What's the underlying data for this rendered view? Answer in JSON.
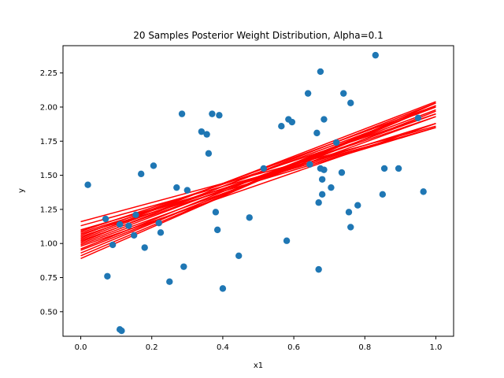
{
  "chart_data": {
    "type": "scatter",
    "title": "20 Samples Posterior Weight Distribution, Alpha=0.1",
    "xlabel": "x1",
    "ylabel": "y",
    "xlim": [
      -0.05,
      1.05
    ],
    "ylim": [
      0.32,
      2.45
    ],
    "xticks": [
      0.0,
      0.2,
      0.4,
      0.6,
      0.8,
      1.0
    ],
    "xtick_labels": [
      "0.0",
      "0.2",
      "0.4",
      "0.6",
      "0.8",
      "1.0"
    ],
    "yticks": [
      0.5,
      0.75,
      1.0,
      1.25,
      1.5,
      1.75,
      2.0,
      2.25
    ],
    "ytick_labels": [
      "0.50",
      "0.75",
      "1.00",
      "1.25",
      "1.50",
      "1.75",
      "2.00",
      "2.25"
    ],
    "grid": false,
    "colors": {
      "points": "#1f77b4",
      "lines": "#ff0000"
    },
    "scatter": {
      "x": [
        0.02,
        0.07,
        0.075,
        0.09,
        0.11,
        0.11,
        0.115,
        0.135,
        0.15,
        0.155,
        0.17,
        0.18,
        0.205,
        0.22,
        0.225,
        0.25,
        0.27,
        0.285,
        0.29,
        0.3,
        0.34,
        0.355,
        0.36,
        0.37,
        0.38,
        0.385,
        0.39,
        0.4,
        0.445,
        0.475,
        0.515,
        0.565,
        0.58,
        0.585,
        0.595,
        0.64,
        0.645,
        0.665,
        0.67,
        0.67,
        0.675,
        0.675,
        0.68,
        0.68,
        0.685,
        0.685,
        0.705,
        0.72,
        0.735,
        0.74,
        0.755,
        0.76,
        0.76,
        0.78,
        0.83,
        0.85,
        0.855,
        0.895,
        0.95,
        0.965
      ],
      "y": [
        1.43,
        1.18,
        0.76,
        0.99,
        1.14,
        0.37,
        0.36,
        1.13,
        1.06,
        1.21,
        1.51,
        0.97,
        1.57,
        1.15,
        1.08,
        0.72,
        1.41,
        1.95,
        0.83,
        1.39,
        1.82,
        1.8,
        1.66,
        1.95,
        1.23,
        1.1,
        1.94,
        0.67,
        0.91,
        1.19,
        1.55,
        1.86,
        1.02,
        1.91,
        1.89,
        2.1,
        1.58,
        1.81,
        1.3,
        0.81,
        1.55,
        2.26,
        1.36,
        1.47,
        1.91,
        1.54,
        1.41,
        1.74,
        1.52,
        2.1,
        1.23,
        2.03,
        1.12,
        1.28,
        2.38,
        1.36,
        1.55,
        1.55,
        1.92,
        1.38
      ]
    },
    "lines": [
      {
        "intercept": 1.16,
        "slope": 0.7
      },
      {
        "intercept": 1.13,
        "slope": 0.72
      },
      {
        "intercept": 1.1,
        "slope": 0.75
      },
      {
        "intercept": 1.08,
        "slope": 0.8
      },
      {
        "intercept": 1.06,
        "slope": 0.95
      },
      {
        "intercept": 1.05,
        "slope": 0.88
      },
      {
        "intercept": 1.04,
        "slope": 1.0
      },
      {
        "intercept": 1.03,
        "slope": 0.97
      },
      {
        "intercept": 1.02,
        "slope": 0.93
      },
      {
        "intercept": 1.01,
        "slope": 1.02
      },
      {
        "intercept": 1.0,
        "slope": 0.98
      },
      {
        "intercept": 0.98,
        "slope": 0.9
      },
      {
        "intercept": 0.96,
        "slope": 1.05
      },
      {
        "intercept": 0.95,
        "slope": 1.02
      },
      {
        "intercept": 0.93,
        "slope": 1.08
      },
      {
        "intercept": 0.91,
        "slope": 1.1
      },
      {
        "intercept": 0.89,
        "slope": 1.14
      },
      {
        "intercept": 1.07,
        "slope": 0.78
      },
      {
        "intercept": 1.09,
        "slope": 0.86
      },
      {
        "intercept": 0.99,
        "slope": 0.94
      }
    ]
  }
}
